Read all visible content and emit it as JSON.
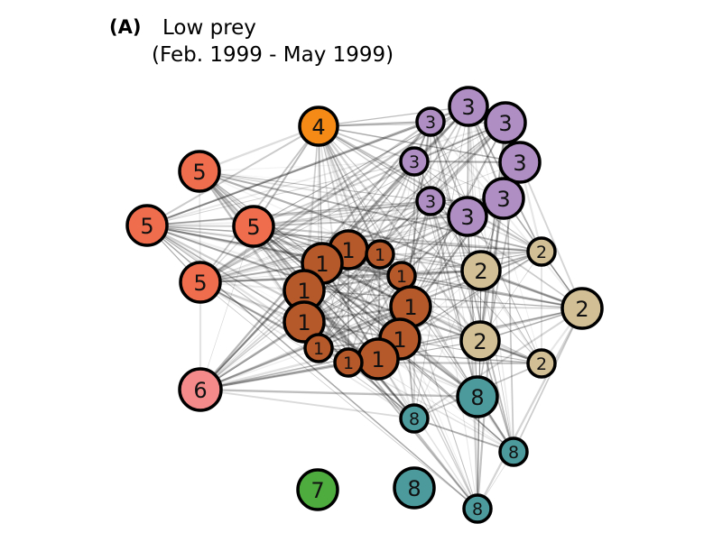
{
  "figure": {
    "panel_letter": "(A)",
    "title_line1": "Low prey",
    "title_line2": "(Feb. 1999 - May 1999)"
  },
  "group_colors": {
    "1": "#b5582a",
    "2": "#d2bf96",
    "3": "#ae8ec3",
    "4": "#f58a16",
    "5": "#ef6c4c",
    "6": "#f48a8a",
    "7": "#4eac3f",
    "8": "#4d9a9d"
  },
  "nodes": [
    {
      "id": "n4",
      "group": 4,
      "label": "4"
    },
    {
      "id": "n5a",
      "group": 5,
      "label": "5"
    },
    {
      "id": "n5b",
      "group": 5,
      "label": "5"
    },
    {
      "id": "n5c",
      "group": 5,
      "label": "5"
    },
    {
      "id": "n5d",
      "group": 5,
      "label": "5"
    },
    {
      "id": "n6",
      "group": 6,
      "label": "6"
    },
    {
      "id": "n7",
      "group": 7,
      "label": "7"
    },
    {
      "id": "n3a",
      "group": 3,
      "label": "3"
    },
    {
      "id": "n3b",
      "group": 3,
      "label": "3"
    },
    {
      "id": "n3c",
      "group": 3,
      "label": "3"
    },
    {
      "id": "n3d",
      "group": 3,
      "label": "3"
    },
    {
      "id": "n3e",
      "group": 3,
      "label": "3"
    },
    {
      "id": "n3f",
      "group": 3,
      "label": "3"
    },
    {
      "id": "n3g",
      "group": 3,
      "label": "3"
    },
    {
      "id": "n3h",
      "group": 3,
      "label": "3"
    },
    {
      "id": "n1a",
      "group": 1,
      "label": "1"
    },
    {
      "id": "n1b",
      "group": 1,
      "label": "1"
    },
    {
      "id": "n1c",
      "group": 1,
      "label": "1"
    },
    {
      "id": "n1d",
      "group": 1,
      "label": "1"
    },
    {
      "id": "n1e",
      "group": 1,
      "label": "1"
    },
    {
      "id": "n1f",
      "group": 1,
      "label": "1"
    },
    {
      "id": "n1g",
      "group": 1,
      "label": "1"
    },
    {
      "id": "n1h",
      "group": 1,
      "label": "1"
    },
    {
      "id": "n1i",
      "group": 1,
      "label": "1"
    },
    {
      "id": "n1j",
      "group": 1,
      "label": "1"
    },
    {
      "id": "n1k",
      "group": 1,
      "label": "1"
    },
    {
      "id": "n2a",
      "group": 2,
      "label": "2"
    },
    {
      "id": "n2b",
      "group": 2,
      "label": "2"
    },
    {
      "id": "n2c",
      "group": 2,
      "label": "2"
    },
    {
      "id": "n2d",
      "group": 2,
      "label": "2"
    },
    {
      "id": "n2e",
      "group": 2,
      "label": "2"
    },
    {
      "id": "n8a",
      "group": 8,
      "label": "8"
    },
    {
      "id": "n8b",
      "group": 8,
      "label": "8"
    },
    {
      "id": "n8c",
      "group": 8,
      "label": "8"
    },
    {
      "id": "n8d",
      "group": 8,
      "label": "8"
    },
    {
      "id": "n8e",
      "group": 8,
      "label": "8"
    }
  ]
}
